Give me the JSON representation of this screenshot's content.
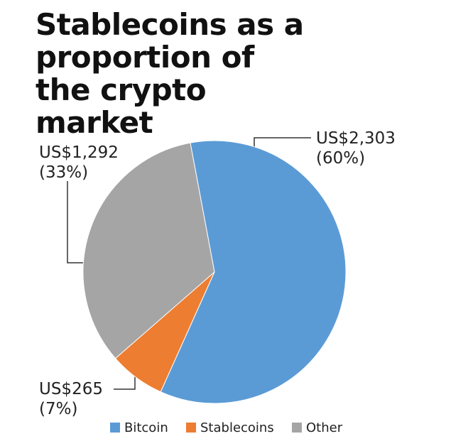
{
  "chart_data": {
    "type": "pie",
    "title": "Stablecoins as a proportion of the crypto market",
    "categories": [
      "Bitcoin",
      "Stablecoins",
      "Other"
    ],
    "values": [
      2303,
      265,
      1292
    ],
    "value_labels": [
      "US$2,303",
      "US$265",
      "US$1,292"
    ],
    "percent_values": [
      60,
      7,
      33
    ],
    "percent_labels": [
      "(60%)",
      "(7%)",
      "(33%)"
    ],
    "colors": [
      "#5b9bd5",
      "#ed7d31",
      "#a5a5a5"
    ]
  }
}
